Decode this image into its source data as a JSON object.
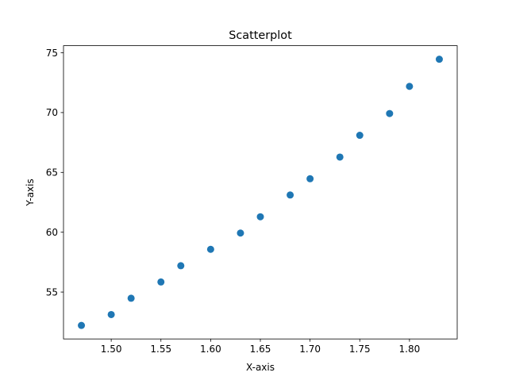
{
  "chart_data": {
    "type": "scatter",
    "title": "Scatterplot",
    "xlabel": "X-axis",
    "ylabel": "Y-axis",
    "x": [
      1.47,
      1.5,
      1.52,
      1.55,
      1.57,
      1.6,
      1.63,
      1.65,
      1.68,
      1.7,
      1.73,
      1.75,
      1.78,
      1.8,
      1.83
    ],
    "y": [
      52.21,
      53.12,
      54.48,
      55.84,
      57.2,
      58.57,
      59.93,
      61.29,
      63.11,
      64.47,
      66.28,
      68.1,
      69.92,
      72.19,
      74.46
    ],
    "xlim": [
      1.452,
      1.848
    ],
    "ylim": [
      51.08,
      75.59
    ],
    "xticks": [
      1.5,
      1.55,
      1.6,
      1.65,
      1.7,
      1.75,
      1.8
    ],
    "xtick_labels": [
      "1.50",
      "1.55",
      "1.60",
      "1.65",
      "1.70",
      "1.75",
      "1.80"
    ],
    "yticks": [
      55,
      60,
      65,
      70,
      75
    ],
    "ytick_labels": [
      "55",
      "60",
      "65",
      "70",
      "75"
    ],
    "marker_color": "#1f77b4",
    "grid": false,
    "legend": "none"
  }
}
